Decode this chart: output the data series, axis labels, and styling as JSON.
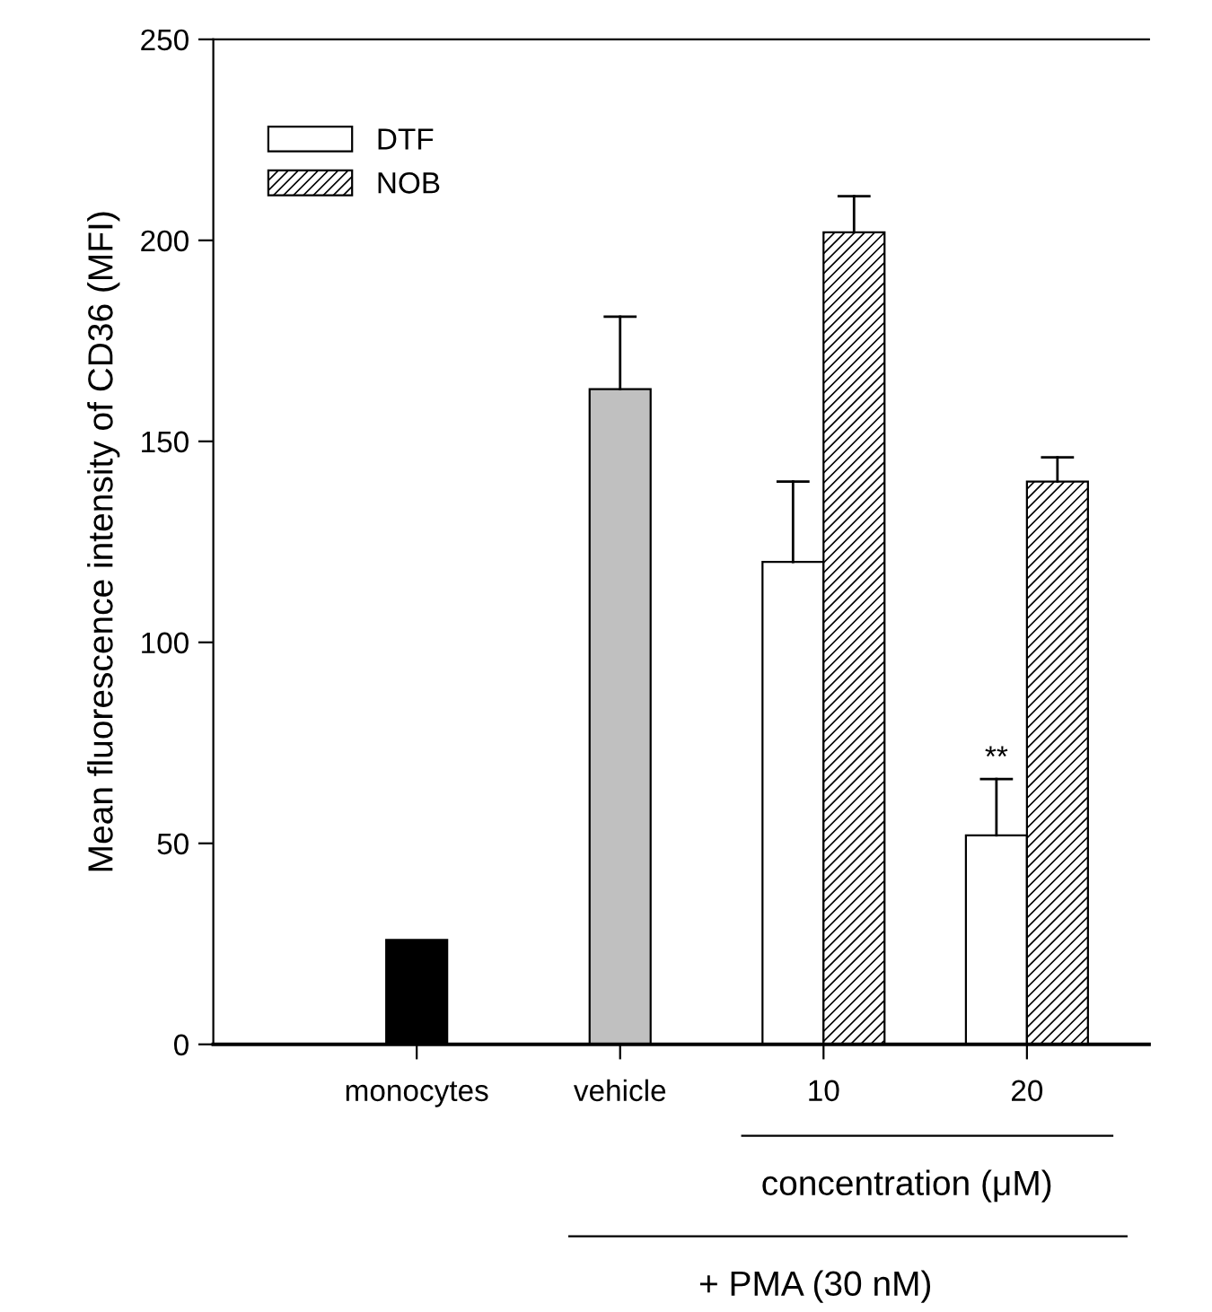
{
  "chart_data": {
    "type": "bar",
    "ylabel": "Mean fluorescence intensity of CD36 (MFI)",
    "categories": [
      "monocytes",
      "vehicle",
      "10",
      "20"
    ],
    "series": [
      {
        "color": "#000000",
        "values": [
          26,
          null,
          null,
          null
        ],
        "errors": [
          null,
          null,
          null,
          null
        ]
      },
      {
        "color": "#c0c0c0",
        "values": [
          null,
          163,
          null,
          null
        ],
        "errors": [
          null,
          [
            163,
            181
          ],
          null,
          null
        ]
      },
      {
        "name": "DTF",
        "color": "#ffffff",
        "values": [
          null,
          null,
          120,
          52
        ],
        "errors": [
          null,
          null,
          [
            120,
            140
          ],
          [
            52,
            66
          ]
        ]
      },
      {
        "name": "NOB",
        "color": "#000000",
        "values": [
          null,
          null,
          202,
          140
        ],
        "errors": [
          null,
          null,
          [
            202,
            211
          ],
          [
            140,
            146
          ]
        ]
      }
    ],
    "ylim": [
      0,
      250
    ],
    "yticks": [
      0,
      50,
      100,
      150,
      200,
      250
    ],
    "grid": false,
    "legend": "top left",
    "annotations": [
      {
        "text": "**",
        "x": "20",
        "y": 71
      },
      "concentration (μM)",
      "+ PMA (30 nM)"
    ]
  }
}
